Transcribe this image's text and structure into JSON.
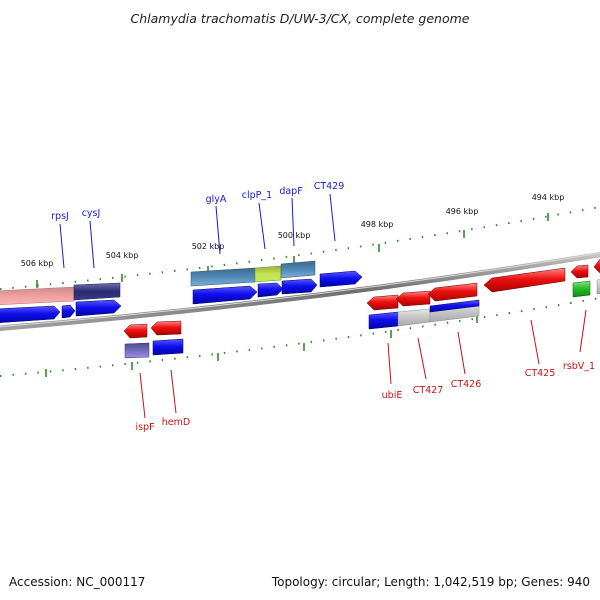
{
  "title": "Chlamydia trachomatis D/UW-3/CX, complete genome",
  "footer": {
    "accession": "Accession: NC_000117",
    "summary": "Topology: circular; Length: 1,042,519 bp; Genes: 940"
  },
  "ruler": {
    "labels": [
      "506 kbp",
      "504 kbp",
      "502 kbp",
      "500 kbp",
      "498 kbp",
      "496 kbp",
      "494 kbp"
    ],
    "tick_color": "#2e8b2e"
  },
  "colors": {
    "forward_label": "#1a1acc",
    "reverse_label": "#cc1111",
    "backbone": "#808080"
  },
  "gene_labels": {
    "forward": [
      "rpsJ",
      "cysJ",
      "glyA",
      "clpP_1",
      "dapF",
      "CT429"
    ],
    "reverse": [
      "ispF",
      "hemD",
      "ubiE",
      "CT427",
      "CT426",
      "CT425",
      "rsbV_1"
    ]
  }
}
